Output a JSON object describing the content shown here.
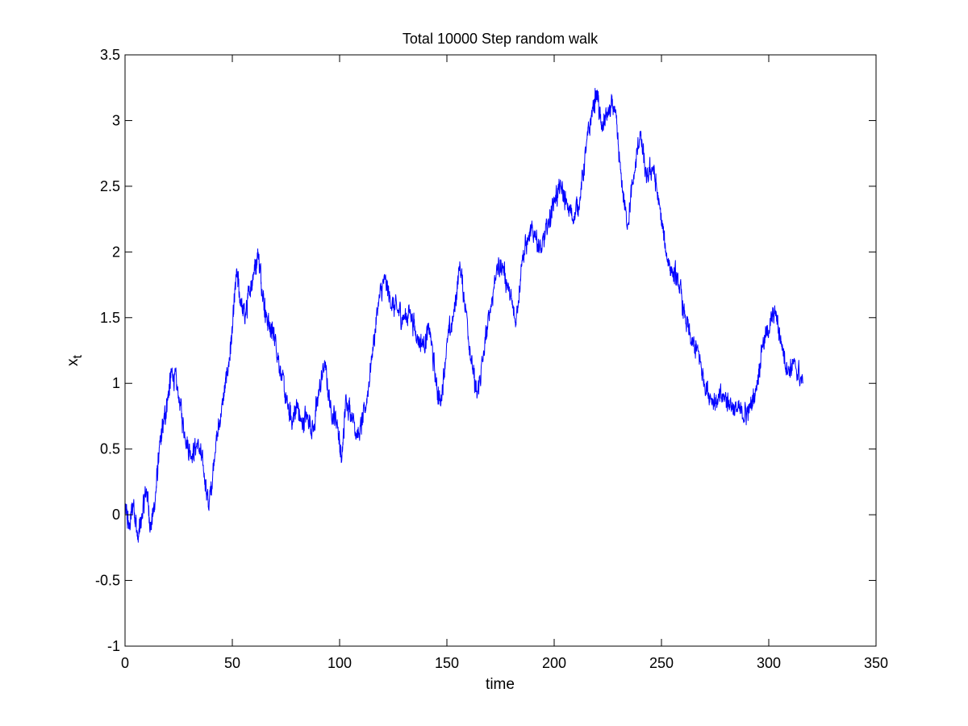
{
  "chart_data": {
    "type": "line",
    "title": "Total 10000 Step random walk",
    "xlabel": "time",
    "ylabel": {
      "main": "x",
      "subscript": "t"
    },
    "xlim": [
      0,
      350
    ],
    "ylim": [
      -1,
      3.5
    ],
    "xticks": [
      0,
      50,
      100,
      150,
      200,
      250,
      300,
      350
    ],
    "xtick_labels": [
      "0",
      "50",
      "100",
      "150",
      "200",
      "250",
      "300",
      "350"
    ],
    "yticks": [
      -1,
      -0.5,
      0,
      0.5,
      1,
      1.5,
      2,
      2.5,
      3,
      3.5
    ],
    "ytick_labels": [
      "-1",
      "-0.5",
      "0",
      "0.5",
      "1",
      "1.5",
      "2",
      "2.5",
      "3",
      "3.5"
    ],
    "grid": false,
    "series": [
      {
        "color": "#0000ff",
        "x": [
          0,
          2,
          4,
          6,
          8,
          10,
          12,
          14,
          16,
          18,
          20,
          22,
          25,
          28,
          31,
          34,
          37,
          39,
          42,
          45,
          48,
          50,
          52,
          54,
          56,
          58,
          60,
          62,
          64,
          66,
          68,
          70,
          73,
          76,
          78,
          80,
          82,
          85,
          88,
          90,
          93,
          96,
          99,
          101,
          103,
          106,
          109,
          112,
          115,
          118,
          121,
          124,
          127,
          130,
          133,
          136,
          139,
          142,
          145,
          147,
          150,
          153,
          156,
          159,
          162,
          164,
          167,
          170,
          173,
          176,
          179,
          182,
          185,
          188,
          191,
          194,
          197,
          200,
          203,
          206,
          209,
          212,
          215,
          218,
          220,
          222,
          225,
          228,
          231,
          234,
          237,
          240,
          243,
          246,
          249,
          252,
          255,
          258,
          261,
          264,
          267,
          270,
          273,
          276,
          279,
          282,
          285,
          288,
          291,
          294,
          297,
          300,
          303,
          306,
          309,
          312,
          316
        ],
        "y": [
          0.05,
          -0.1,
          0.1,
          -0.2,
          0.0,
          0.2,
          -0.1,
          0.1,
          0.5,
          0.7,
          0.9,
          1.1,
          0.9,
          0.6,
          0.45,
          0.55,
          0.3,
          0.05,
          0.5,
          0.8,
          1.1,
          1.4,
          1.85,
          1.6,
          1.5,
          1.7,
          1.85,
          2.0,
          1.7,
          1.5,
          1.4,
          1.35,
          1.05,
          0.8,
          0.7,
          0.85,
          0.7,
          0.75,
          0.65,
          0.9,
          1.15,
          0.8,
          0.7,
          0.4,
          0.9,
          0.75,
          0.6,
          0.8,
          1.2,
          1.6,
          1.8,
          1.6,
          1.55,
          1.5,
          1.55,
          1.35,
          1.3,
          1.4,
          1.0,
          0.85,
          1.3,
          1.5,
          1.9,
          1.55,
          1.1,
          0.9,
          1.2,
          1.55,
          1.85,
          1.9,
          1.7,
          1.45,
          1.95,
          2.1,
          2.15,
          2.0,
          2.2,
          2.4,
          2.5,
          2.35,
          2.25,
          2.4,
          2.8,
          3.1,
          3.2,
          2.95,
          3.05,
          3.1,
          2.6,
          2.2,
          2.55,
          2.9,
          2.55,
          2.65,
          2.35,
          2.0,
          1.85,
          1.75,
          1.5,
          1.3,
          1.25,
          1.0,
          0.9,
          0.85,
          0.9,
          0.85,
          0.8,
          0.75,
          0.8,
          0.95,
          1.3,
          1.4,
          1.55,
          1.3,
          1.1,
          1.15,
          1.0
        ]
      }
    ]
  }
}
